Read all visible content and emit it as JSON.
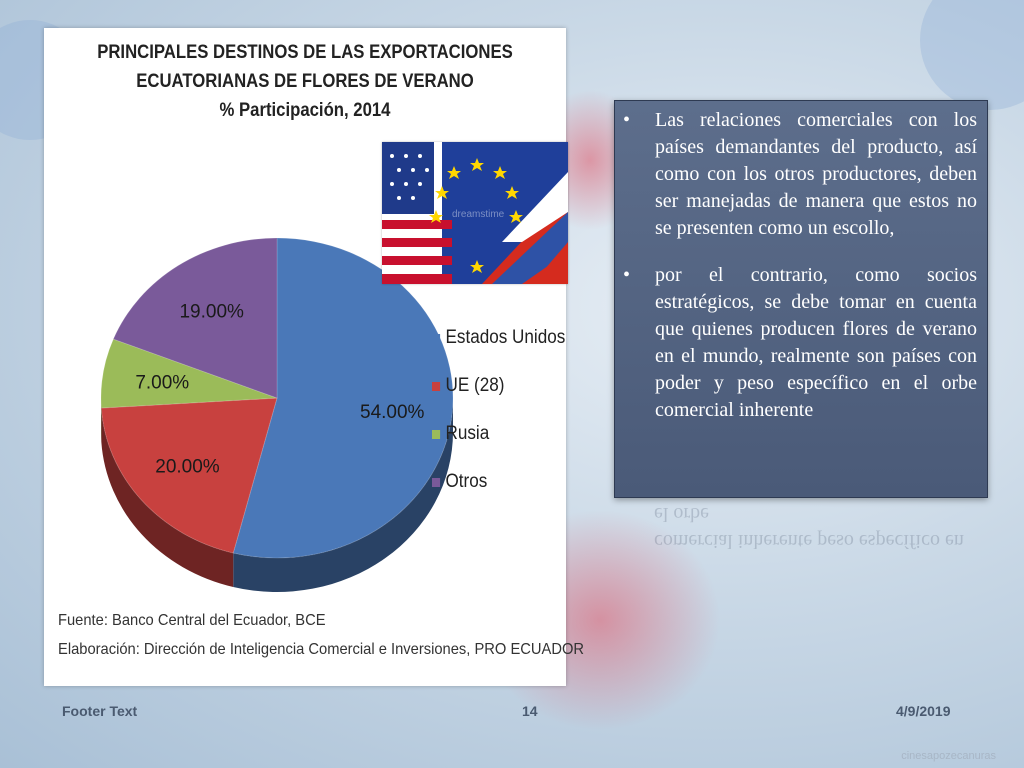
{
  "slide": {
    "chart_title_lines": [
      "PRINCIPALES DESTINOS DE LAS EXPORTACIONES",
      "ECUATORIANAS DE FLORES DE VERANO",
      "% Participación, 2014"
    ],
    "source_lines": [
      "Fuente: Banco Central del Ecuador, BCE",
      "Elaboración: Dirección de Inteligencia Comercial e Inversiones, PRO ECUADOR"
    ],
    "bullets": [
      "Las relaciones comerciales con los países demandantes del producto, así como con los otros productores, deben ser manejadas de manera que estos no se presenten como un escollo,",
      "por el contrario, como socios estratégicos, se debe tomar en cuenta que quienes producen flores de verano en el mundo, realmente son países con poder y peso específico en el orbe comercial inherente"
    ],
    "reflection_text": "comercial inherente peso específico en el orbe",
    "flags_watermark": "dreamstime",
    "watermark_text": "cinesapozecanuras"
  },
  "footer": {
    "left": "Footer Text",
    "page_number": "14",
    "date": "4/9/2019"
  },
  "chart_data": {
    "type": "pie",
    "title": "PRINCIPALES DESTINOS DE LAS EXPORTACIONES ECUATORIANAS DE FLORES DE VERANO % Participación, 2014",
    "categories": [
      "Estados Unidos",
      "UE (28)",
      "Rusia",
      "Otros"
    ],
    "values": [
      54.0,
      20.0,
      7.0,
      19.0
    ],
    "labels": [
      "54.00%",
      "20.00%",
      "7.00%",
      "19.00%"
    ],
    "colors": [
      "#4a78b8",
      "#c8413f",
      "#9bbb59",
      "#7a5a9a"
    ],
    "legend_position": "right"
  }
}
